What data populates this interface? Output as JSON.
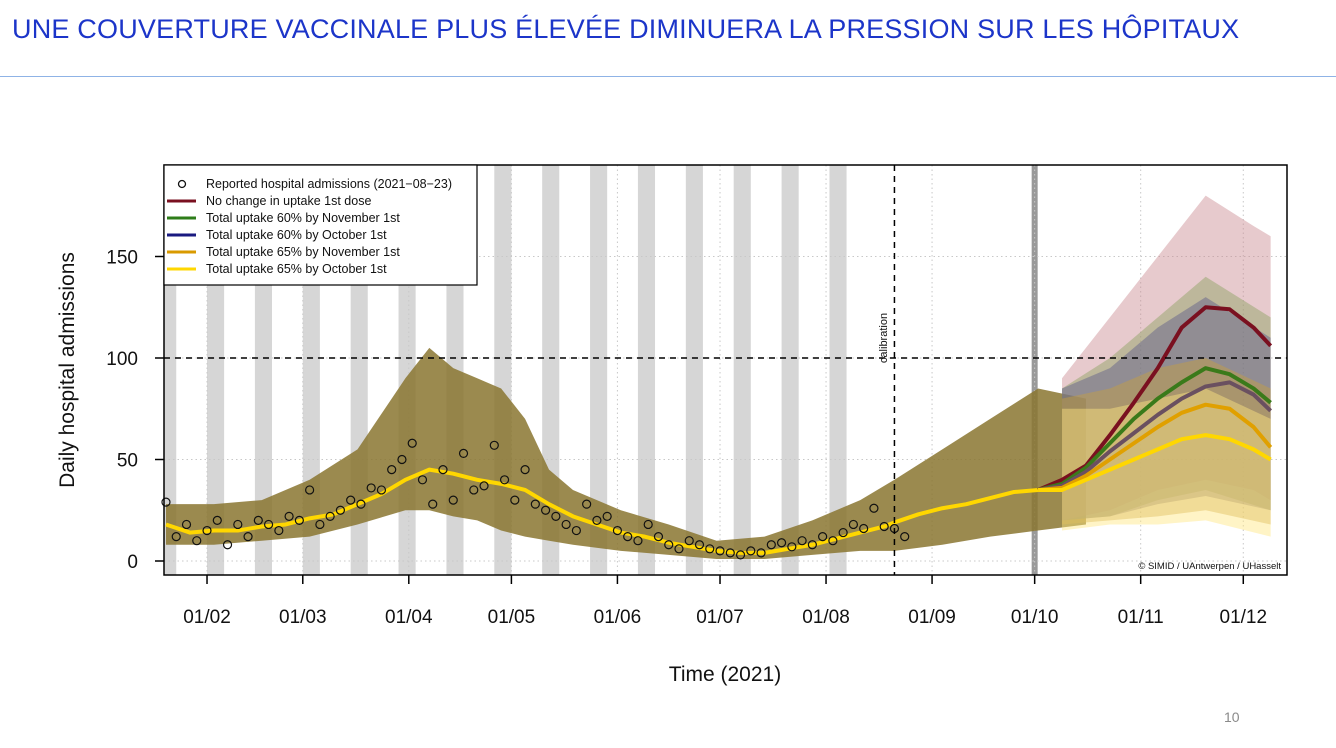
{
  "slide": {
    "title": "UNE COUVERTURE VACCINALE PLUS ÉLEVÉE DIMINUERA LA PRESSION SUR LES HÔPITAUX",
    "page_number": "10"
  },
  "chart_data": {
    "type": "line",
    "xlabel": "Time (2021)",
    "ylabel": "Daily hospital admissions",
    "x_unit": "day of year 2021",
    "xlim": [
      18.5,
      347
    ],
    "ylim": [
      -7,
      195
    ],
    "x_ticks": [
      {
        "day": 31,
        "label": "01/02"
      },
      {
        "day": 59,
        "label": "01/03"
      },
      {
        "day": 90,
        "label": "01/04"
      },
      {
        "day": 120,
        "label": "01/05"
      },
      {
        "day": 151,
        "label": "01/06"
      },
      {
        "day": 181,
        "label": "01/07"
      },
      {
        "day": 212,
        "label": "01/08"
      },
      {
        "day": 243,
        "label": "01/09"
      },
      {
        "day": 273,
        "label": "01/10"
      },
      {
        "day": 304,
        "label": "01/11"
      },
      {
        "day": 334,
        "label": "01/12"
      }
    ],
    "y_ticks": [
      {
        "value": 0,
        "label": "0"
      },
      {
        "value": 50,
        "label": "50"
      },
      {
        "value": 100,
        "label": "100"
      },
      {
        "value": 150,
        "label": "150"
      }
    ],
    "grid": true,
    "reference_line_y": 100,
    "calibration": {
      "day": 232,
      "label": "calibration"
    },
    "highlight_day": 273,
    "shaded_period_starts": [
      17,
      31,
      45,
      59,
      73,
      87,
      101,
      115,
      129,
      143,
      157,
      171,
      185,
      199,
      213
    ],
    "shaded_period_length_days": 5,
    "credit": "© SIMID / UAntwerpen / UHasselt",
    "legend": {
      "placement": "top-left",
      "entries": [
        {
          "label": "Reported hospital admissions (2021−08−23)",
          "symbol": "circle"
        },
        {
          "label": "No change in uptake 1st dose",
          "color": "#7a1020"
        },
        {
          "label": "Total uptake 60% by November 1st",
          "color": "#2e7d1a"
        },
        {
          "label": "Total uptake 60% by October 1st",
          "color": "#1a1a80"
        },
        {
          "label": "Total uptake 65% by November 1st",
          "color": "#d99a00"
        },
        {
          "label": "Total uptake 65% by October 1st",
          "color": "#ffd700"
        }
      ]
    },
    "observed": {
      "name": "Reported hospital admissions",
      "points": [
        [
          19,
          29
        ],
        [
          22,
          12
        ],
        [
          25,
          18
        ],
        [
          28,
          10
        ],
        [
          31,
          15
        ],
        [
          34,
          20
        ],
        [
          37,
          8
        ],
        [
          40,
          18
        ],
        [
          43,
          12
        ],
        [
          46,
          20
        ],
        [
          49,
          18
        ],
        [
          52,
          15
        ],
        [
          55,
          22
        ],
        [
          58,
          20
        ],
        [
          61,
          35
        ],
        [
          64,
          18
        ],
        [
          67,
          22
        ],
        [
          70,
          25
        ],
        [
          73,
          30
        ],
        [
          76,
          28
        ],
        [
          79,
          36
        ],
        [
          82,
          35
        ],
        [
          85,
          45
        ],
        [
          88,
          50
        ],
        [
          91,
          58
        ],
        [
          94,
          40
        ],
        [
          97,
          28
        ],
        [
          100,
          45
        ],
        [
          103,
          30
        ],
        [
          106,
          53
        ],
        [
          109,
          35
        ],
        [
          112,
          37
        ],
        [
          115,
          57
        ],
        [
          118,
          40
        ],
        [
          121,
          30
        ],
        [
          124,
          45
        ],
        [
          127,
          28
        ],
        [
          130,
          25
        ],
        [
          133,
          22
        ],
        [
          136,
          18
        ],
        [
          139,
          15
        ],
        [
          142,
          28
        ],
        [
          145,
          20
        ],
        [
          148,
          22
        ],
        [
          151,
          15
        ],
        [
          154,
          12
        ],
        [
          157,
          10
        ],
        [
          160,
          18
        ],
        [
          163,
          12
        ],
        [
          166,
          8
        ],
        [
          169,
          6
        ],
        [
          172,
          10
        ],
        [
          175,
          8
        ],
        [
          178,
          6
        ],
        [
          181,
          5
        ],
        [
          184,
          4
        ],
        [
          187,
          3
        ],
        [
          190,
          5
        ],
        [
          193,
          4
        ],
        [
          196,
          8
        ],
        [
          199,
          9
        ],
        [
          202,
          7
        ],
        [
          205,
          10
        ],
        [
          208,
          8
        ],
        [
          211,
          12
        ],
        [
          214,
          10
        ],
        [
          217,
          14
        ],
        [
          220,
          18
        ],
        [
          223,
          16
        ],
        [
          226,
          26
        ],
        [
          229,
          17
        ],
        [
          232,
          16
        ],
        [
          235,
          12
        ]
      ]
    },
    "fit_band": {
      "color": "#8a7530",
      "points": [
        [
          19,
          8,
          28
        ],
        [
          33,
          8,
          28
        ],
        [
          47,
          10,
          30
        ],
        [
          61,
          12,
          40
        ],
        [
          75,
          18,
          55
        ],
        [
          89,
          25,
          90
        ],
        [
          96,
          25,
          105
        ],
        [
          103,
          22,
          95
        ],
        [
          110,
          20,
          90
        ],
        [
          117,
          15,
          85
        ],
        [
          124,
          12,
          70
        ],
        [
          131,
          10,
          45
        ],
        [
          138,
          8,
          35
        ],
        [
          152,
          5,
          25
        ],
        [
          166,
          3,
          18
        ],
        [
          180,
          1,
          10
        ],
        [
          194,
          1,
          12
        ],
        [
          208,
          3,
          20
        ],
        [
          222,
          5,
          30
        ],
        [
          232,
          5,
          40
        ],
        [
          246,
          8,
          55
        ],
        [
          260,
          12,
          70
        ],
        [
          274,
          15,
          85
        ],
        [
          288,
          18,
          80
        ]
      ]
    },
    "fit_line": {
      "color": "#ffd700",
      "points": [
        [
          19,
          18
        ],
        [
          26,
          14
        ],
        [
          33,
          15
        ],
        [
          40,
          15
        ],
        [
          47,
          17
        ],
        [
          54,
          18
        ],
        [
          61,
          21
        ],
        [
          68,
          23
        ],
        [
          75,
          28
        ],
        [
          82,
          33
        ],
        [
          89,
          40
        ],
        [
          96,
          45
        ],
        [
          103,
          43
        ],
        [
          110,
          40
        ],
        [
          117,
          38
        ],
        [
          124,
          35
        ],
        [
          131,
          28
        ],
        [
          138,
          22
        ],
        [
          145,
          18
        ],
        [
          152,
          14
        ],
        [
          159,
          12
        ],
        [
          166,
          9
        ],
        [
          173,
          7
        ],
        [
          180,
          5
        ],
        [
          187,
          4
        ],
        [
          194,
          4
        ],
        [
          201,
          6
        ],
        [
          208,
          8
        ],
        [
          215,
          11
        ],
        [
          222,
          14
        ],
        [
          229,
          17
        ],
        [
          232,
          19
        ],
        [
          239,
          23
        ],
        [
          246,
          26
        ],
        [
          253,
          28
        ],
        [
          260,
          31
        ],
        [
          267,
          34
        ],
        [
          274,
          35
        ],
        [
          281,
          35
        ]
      ]
    },
    "series": [
      {
        "name": "No change in uptake 1st dose",
        "color": "#7a1020",
        "band_color": "#c98a90",
        "points": [
          [
            274,
            35
          ],
          [
            281,
            40
          ],
          [
            288,
            47
          ],
          [
            295,
            62
          ],
          [
            302,
            78
          ],
          [
            309,
            95
          ],
          [
            316,
            115
          ],
          [
            323,
            125
          ],
          [
            330,
            124
          ],
          [
            337,
            115
          ],
          [
            342,
            106
          ]
        ],
        "band": [
          [
            281,
            20,
            90
          ],
          [
            295,
            25,
            120
          ],
          [
            309,
            35,
            150
          ],
          [
            323,
            40,
            180
          ],
          [
            337,
            35,
            165
          ],
          [
            342,
            30,
            160
          ]
        ]
      },
      {
        "name": "Total uptake 60% by November 1st",
        "color": "#3a7a1a",
        "band_color": "#8aa060",
        "points": [
          [
            274,
            35
          ],
          [
            281,
            38
          ],
          [
            288,
            46
          ],
          [
            295,
            58
          ],
          [
            302,
            70
          ],
          [
            309,
            80
          ],
          [
            316,
            88
          ],
          [
            323,
            95
          ],
          [
            330,
            92
          ],
          [
            337,
            85
          ],
          [
            342,
            78
          ]
        ],
        "band": [
          [
            281,
            20,
            85
          ],
          [
            295,
            22,
            100
          ],
          [
            309,
            30,
            120
          ],
          [
            323,
            35,
            140
          ],
          [
            342,
            25,
            120
          ]
        ]
      },
      {
        "name": "Total uptake 60% by October 1st",
        "color": "#6a5060",
        "band_color": "#5a5a8a",
        "points": [
          [
            274,
            35
          ],
          [
            281,
            37
          ],
          [
            288,
            44
          ],
          [
            295,
            54
          ],
          [
            302,
            63
          ],
          [
            309,
            72
          ],
          [
            316,
            80
          ],
          [
            323,
            86
          ],
          [
            330,
            88
          ],
          [
            337,
            82
          ],
          [
            342,
            74
          ]
        ],
        "band": [
          [
            281,
            20,
            85
          ],
          [
            295,
            22,
            95
          ],
          [
            309,
            28,
            115
          ],
          [
            323,
            32,
            130
          ],
          [
            342,
            25,
            110
          ]
        ]
      },
      {
        "name": "Total uptake 65% by November 1st",
        "color": "#e0a000",
        "band_color": "#c8a040",
        "points": [
          [
            274,
            35
          ],
          [
            281,
            36
          ],
          [
            288,
            42
          ],
          [
            295,
            50
          ],
          [
            302,
            58
          ],
          [
            309,
            66
          ],
          [
            316,
            73
          ],
          [
            323,
            77
          ],
          [
            330,
            75
          ],
          [
            337,
            66
          ],
          [
            342,
            56
          ]
        ],
        "band": [
          [
            281,
            18,
            80
          ],
          [
            295,
            20,
            85
          ],
          [
            309,
            22,
            95
          ],
          [
            323,
            25,
            100
          ],
          [
            342,
            18,
            85
          ]
        ]
      },
      {
        "name": "Total uptake 65% by October 1st",
        "color": "#ffd700",
        "band_color": "#ffe680",
        "points": [
          [
            274,
            35
          ],
          [
            281,
            35
          ],
          [
            288,
            40
          ],
          [
            295,
            45
          ],
          [
            302,
            50
          ],
          [
            309,
            55
          ],
          [
            316,
            60
          ],
          [
            323,
            62
          ],
          [
            330,
            60
          ],
          [
            337,
            55
          ],
          [
            342,
            50
          ]
        ],
        "band": [
          [
            281,
            15,
            75
          ],
          [
            295,
            18,
            75
          ],
          [
            309,
            18,
            80
          ],
          [
            323,
            20,
            85
          ],
          [
            342,
            12,
            70
          ]
        ]
      }
    ]
  }
}
